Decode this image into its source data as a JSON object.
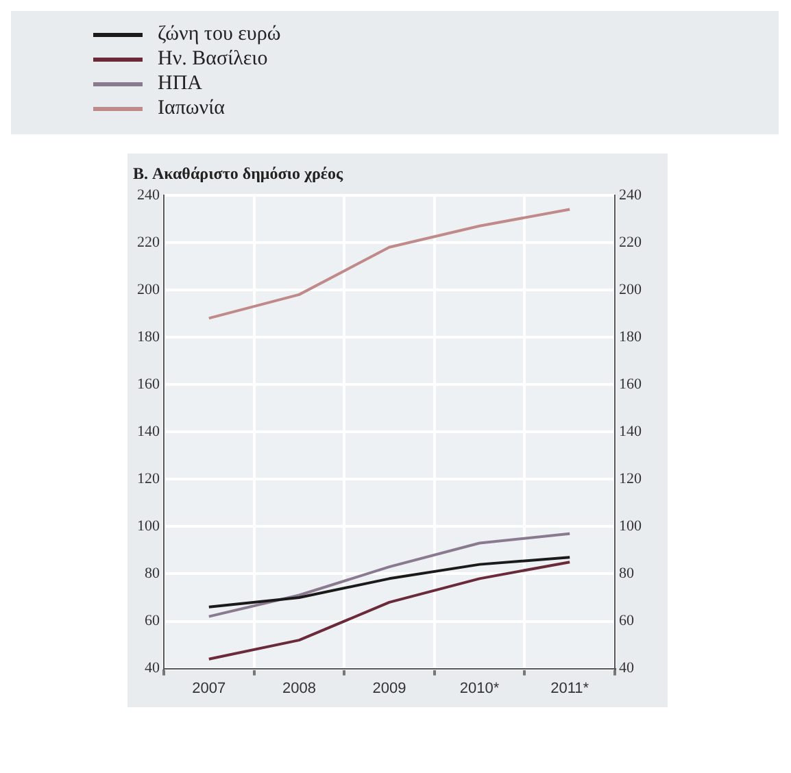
{
  "chart_data": {
    "type": "line",
    "title": "B. Ακαθάριστο δημόσιο χρέος",
    "categories": [
      "2007",
      "2008",
      "2009",
      "2010*",
      "2011*"
    ],
    "series": [
      {
        "name": "ζώνη του ευρώ",
        "color": "#1a1a1a",
        "values": [
          66,
          70,
          78,
          84,
          87
        ]
      },
      {
        "name": "Ην. Βασίλειο",
        "color": "#6b2a3a",
        "values": [
          44,
          52,
          68,
          78,
          85
        ]
      },
      {
        "name": "ΗΠΑ",
        "color": "#8a7a90",
        "values": [
          62,
          71,
          83,
          93,
          97
        ]
      },
      {
        "name": "Ιαπωνία",
        "color": "#c08a8a",
        "values": [
          188,
          198,
          218,
          227,
          234
        ]
      }
    ],
    "ylim": [
      40,
      240
    ],
    "yticks": [
      40,
      60,
      80,
      100,
      120,
      140,
      160,
      180,
      200,
      220,
      240
    ],
    "y2lim": [
      40,
      240
    ],
    "y2ticks": [
      40,
      60,
      80,
      100,
      120,
      140,
      160,
      180,
      200,
      220,
      240
    ],
    "grid": true,
    "legend": "top left",
    "marker": "none",
    "line_style": "solid"
  }
}
